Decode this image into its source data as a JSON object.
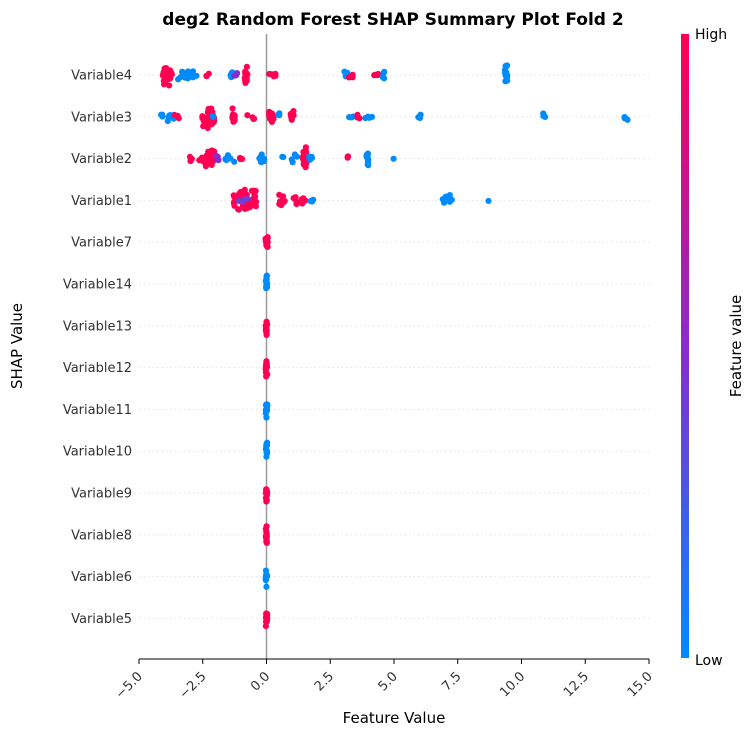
{
  "chart_data": {
    "type": "scatter",
    "subtype": "shap-beeswarm",
    "title": "deg2 Random Forest SHAP Summary Plot Fold 2",
    "xlabel": "Feature Value",
    "ylabel": "SHAP Value",
    "xlim": [
      -5.0,
      15.0
    ],
    "xticks": [
      "-5.0",
      "-2.5",
      "0.0",
      "2.5",
      "5.0",
      "7.5",
      "10.0",
      "12.5",
      "15.0"
    ],
    "xtick_values": [
      -5.0,
      -2.5,
      0.0,
      2.5,
      5.0,
      7.5,
      10.0,
      12.5,
      15.0
    ],
    "grid": "horizontal dotted",
    "colorbar": {
      "label": "Feature value",
      "high": "High",
      "low": "Low",
      "high_color": "#ff0052",
      "mid_color": "#8a2bcc",
      "low_color": "#008bfb"
    },
    "zero_line_color": "#999999",
    "features": [
      {
        "name": "Variable4",
        "clusters": [
          {
            "x": -3.9,
            "v": 1,
            "n": 30,
            "spread": 0.2
          },
          {
            "x": -3.2,
            "v": 0,
            "n": 10,
            "spread": 0.35
          },
          {
            "x": -2.8,
            "v": 0,
            "n": 4,
            "spread": 0.1
          },
          {
            "x": -2.3,
            "v": 1,
            "n": 4,
            "spread": 0.1
          },
          {
            "x": -1.4,
            "v": 0,
            "n": 4,
            "spread": 0.1
          },
          {
            "x": -1.2,
            "v": 0.5,
            "n": 3,
            "spread": 0.05
          },
          {
            "x": -0.8,
            "v": 1,
            "n": 14,
            "spread": 0.06
          },
          {
            "x": 0.2,
            "v": 1,
            "n": 6,
            "spread": 0.25
          },
          {
            "x": 3.1,
            "v": 0,
            "n": 4,
            "spread": 0.1
          },
          {
            "x": 3.3,
            "v": 1,
            "n": 3,
            "spread": 0.08
          },
          {
            "x": 4.3,
            "v": 1,
            "n": 4,
            "spread": 0.1
          },
          {
            "x": 4.6,
            "v": 0,
            "n": 4,
            "spread": 0.05
          },
          {
            "x": 9.4,
            "v": 0,
            "n": 18,
            "spread": 0.05
          }
        ]
      },
      {
        "name": "Variable3",
        "clusters": [
          {
            "x": -4.0,
            "v": 0,
            "n": 7,
            "spread": 0.2
          },
          {
            "x": -3.7,
            "v": 0,
            "n": 5,
            "spread": 0.15
          },
          {
            "x": -3.5,
            "v": 1,
            "n": 3,
            "spread": 0.1
          },
          {
            "x": -2.3,
            "v": 1,
            "n": 34,
            "spread": 0.25
          },
          {
            "x": -2.05,
            "v": 0,
            "n": 3,
            "spread": 0.08
          },
          {
            "x": -1.3,
            "v": 1,
            "n": 12,
            "spread": 0.06
          },
          {
            "x": -0.6,
            "v": 1,
            "n": 4,
            "spread": 0.15
          },
          {
            "x": 0.2,
            "v": 1,
            "n": 18,
            "spread": 0.1
          },
          {
            "x": 0.5,
            "v": 0,
            "n": 3,
            "spread": 0.05
          },
          {
            "x": 1.0,
            "v": 1,
            "n": 8,
            "spread": 0.07
          },
          {
            "x": 3.3,
            "v": 0,
            "n": 3,
            "spread": 0.1
          },
          {
            "x": 3.6,
            "v": 1,
            "n": 3,
            "spread": 0.05
          },
          {
            "x": 4.0,
            "v": 0,
            "n": 4,
            "spread": 0.2
          },
          {
            "x": 6.0,
            "v": 0,
            "n": 3,
            "spread": 0.05
          },
          {
            "x": 10.9,
            "v": 0,
            "n": 4,
            "spread": 0.05
          },
          {
            "x": 14.1,
            "v": 0,
            "n": 4,
            "spread": 0.06
          }
        ]
      },
      {
        "name": "Variable2",
        "clusters": [
          {
            "x": -3.0,
            "v": 1,
            "n": 4,
            "spread": 0.15
          },
          {
            "x": -2.5,
            "v": 1,
            "n": 5,
            "spread": 0.15
          },
          {
            "x": -2.2,
            "v": 1,
            "n": 26,
            "spread": 0.18
          },
          {
            "x": -1.9,
            "v": 0.5,
            "n": 4,
            "spread": 0.1
          },
          {
            "x": -1.5,
            "v": 0,
            "n": 6,
            "spread": 0.25
          },
          {
            "x": -1.0,
            "v": 1,
            "n": 3,
            "spread": 0.06
          },
          {
            "x": -0.2,
            "v": 0,
            "n": 8,
            "spread": 0.12
          },
          {
            "x": 0.6,
            "v": 0,
            "n": 2,
            "spread": 0.06
          },
          {
            "x": 1.1,
            "v": 0,
            "n": 4,
            "spread": 0.15
          },
          {
            "x": 1.5,
            "v": 1,
            "n": 24,
            "spread": 0.08
          },
          {
            "x": 1.75,
            "v": 0,
            "n": 5,
            "spread": 0.08
          },
          {
            "x": 3.2,
            "v": 1,
            "n": 3,
            "spread": 0.08
          },
          {
            "x": 3.95,
            "v": 0,
            "n": 12,
            "spread": 0.04
          },
          {
            "x": 5.0,
            "v": 0,
            "n": 1,
            "spread": 0.02
          }
        ]
      },
      {
        "name": "Variable1",
        "clusters": [
          {
            "x": -1.0,
            "v": 1,
            "n": 40,
            "spread": 0.35
          },
          {
            "x": -0.5,
            "v": 1,
            "n": 16,
            "spread": 0.1
          },
          {
            "x": -0.9,
            "v": 0.4,
            "n": 4,
            "spread": 0.2
          },
          {
            "x": 0.6,
            "v": 1,
            "n": 8,
            "spread": 0.15
          },
          {
            "x": 1.1,
            "v": 1,
            "n": 4,
            "spread": 0.12
          },
          {
            "x": 1.45,
            "v": 1,
            "n": 4,
            "spread": 0.08
          },
          {
            "x": 1.8,
            "v": 0,
            "n": 3,
            "spread": 0.1
          },
          {
            "x": 7.1,
            "v": 0,
            "n": 8,
            "spread": 0.2
          },
          {
            "x": 8.7,
            "v": 0,
            "n": 1,
            "spread": 0.02
          }
        ]
      },
      {
        "name": "Variable7",
        "clusters": [
          {
            "x": 0.0,
            "v": 1,
            "n": 14,
            "spread": 0.05
          }
        ]
      },
      {
        "name": "Variable14",
        "clusters": [
          {
            "x": 0.0,
            "v": 0,
            "n": 14,
            "spread": 0.03
          }
        ]
      },
      {
        "name": "Variable13",
        "clusters": [
          {
            "x": 0.0,
            "v": 1,
            "n": 14,
            "spread": 0.03
          }
        ]
      },
      {
        "name": "Variable12",
        "clusters": [
          {
            "x": 0.0,
            "v": 1,
            "n": 14,
            "spread": 0.03
          }
        ]
      },
      {
        "name": "Variable11",
        "clusters": [
          {
            "x": 0.0,
            "v": 0,
            "n": 14,
            "spread": 0.03
          }
        ]
      },
      {
        "name": "Variable10",
        "clusters": [
          {
            "x": 0.0,
            "v": 0,
            "n": 14,
            "spread": 0.03
          }
        ]
      },
      {
        "name": "Variable9",
        "clusters": [
          {
            "x": 0.0,
            "v": 1,
            "n": 14,
            "spread": 0.03
          }
        ]
      },
      {
        "name": "Variable8",
        "clusters": [
          {
            "x": 0.0,
            "v": 1,
            "n": 14,
            "spread": 0.03
          }
        ]
      },
      {
        "name": "Variable6",
        "clusters": [
          {
            "x": 0.0,
            "v": 0,
            "n": 14,
            "spread": 0.03
          }
        ]
      },
      {
        "name": "Variable5",
        "clusters": [
          {
            "x": 0.0,
            "v": 1,
            "n": 14,
            "spread": 0.03
          }
        ]
      }
    ]
  }
}
